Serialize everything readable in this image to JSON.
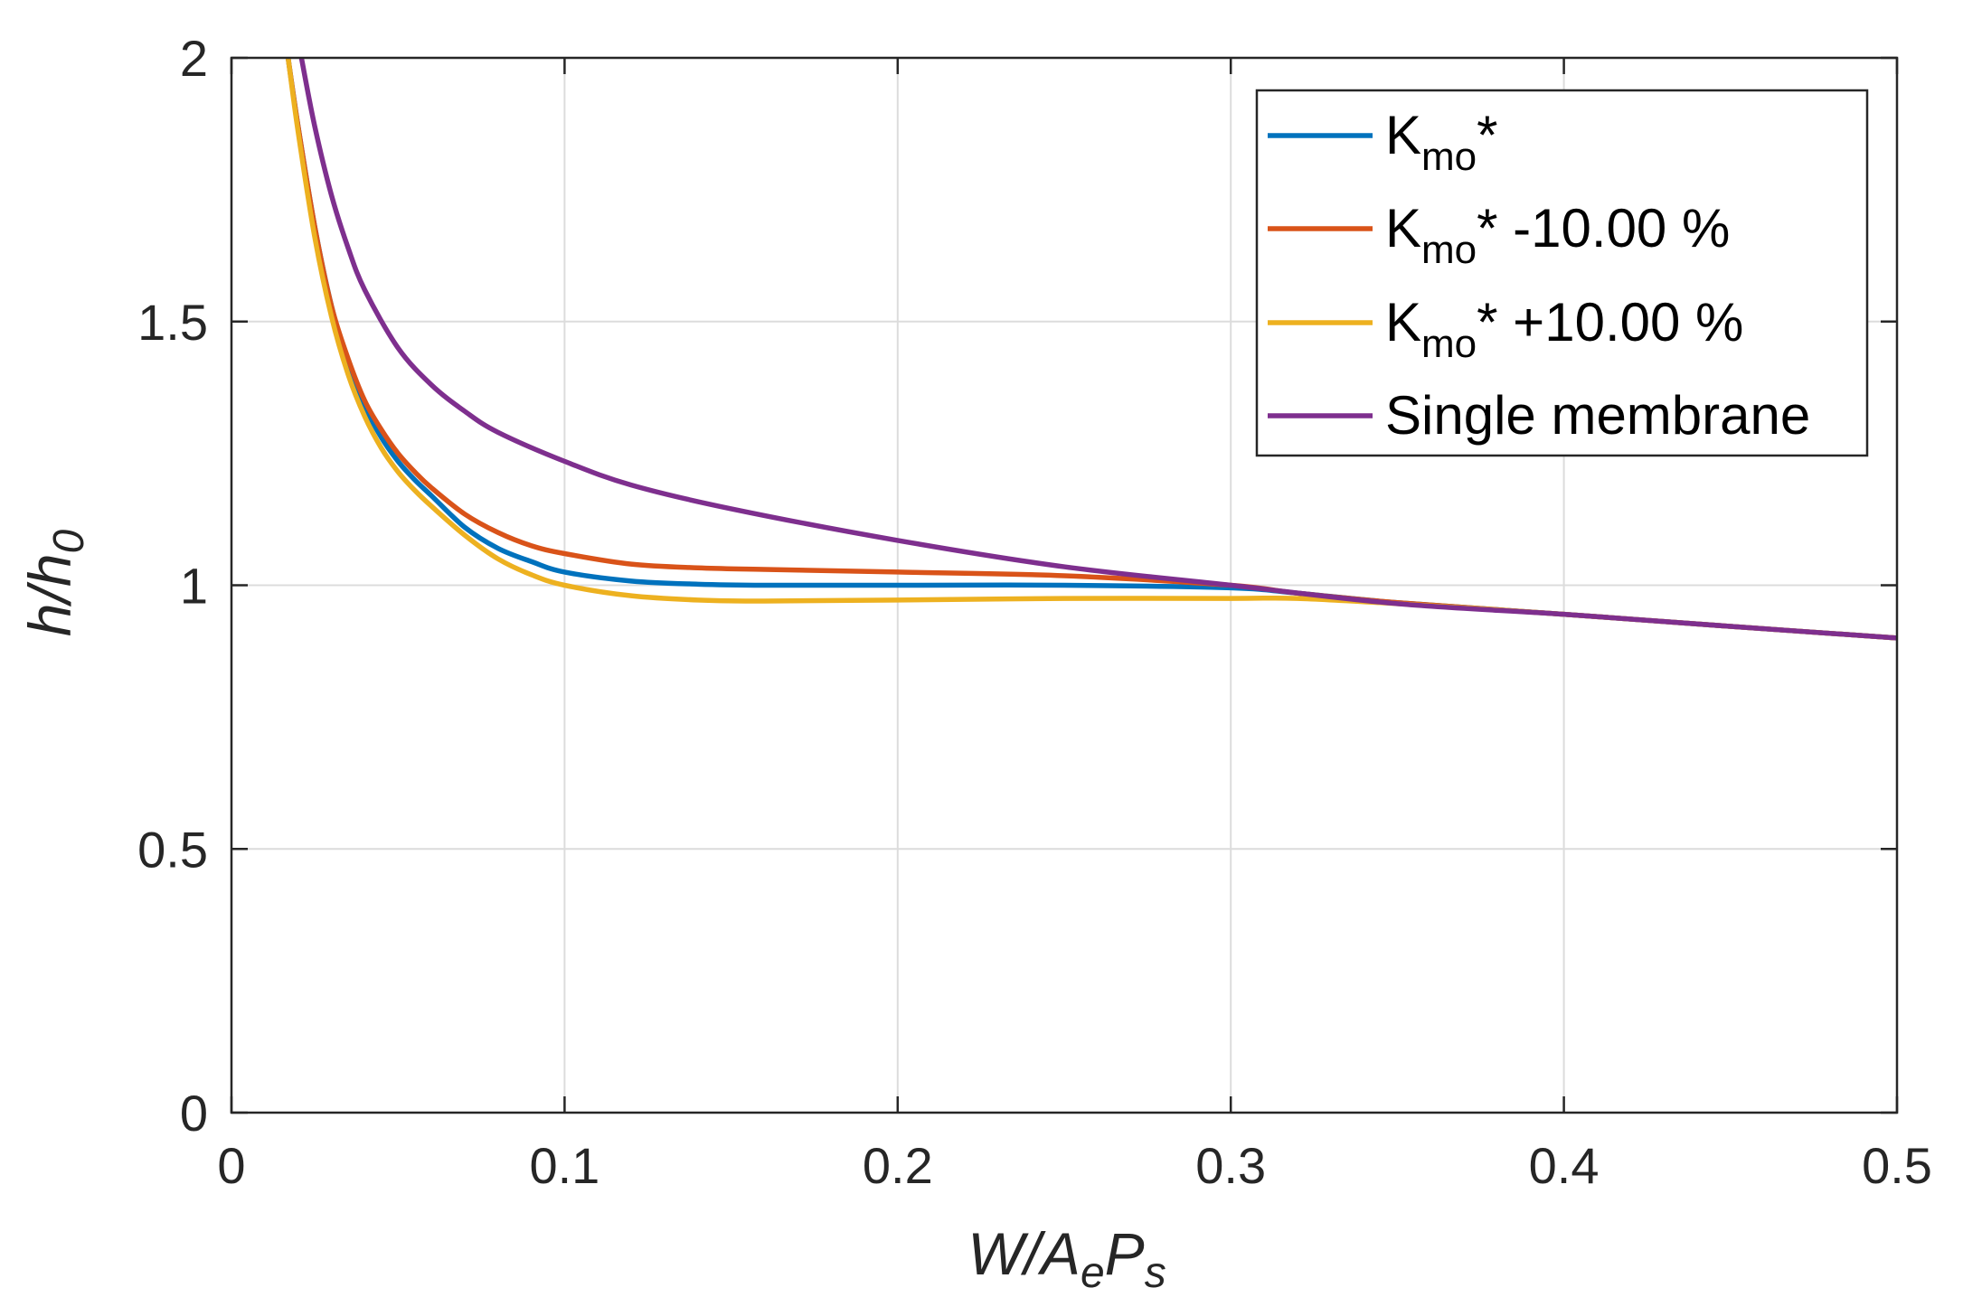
{
  "chart_data": {
    "type": "line",
    "title": "",
    "xlabel": {
      "main": "W/A",
      "sub1": "e",
      "mid": "P",
      "sub2": "s"
    },
    "ylabel": {
      "main": "h/h",
      "sub": "0"
    },
    "xlim": [
      0,
      0.5
    ],
    "ylim": [
      0,
      2
    ],
    "xticks": [
      0,
      0.1,
      0.2,
      0.3,
      0.4,
      0.5
    ],
    "xtick_labels": [
      "0",
      "0.1",
      "0.2",
      "0.3",
      "0.4",
      "0.5"
    ],
    "yticks": [
      0,
      0.5,
      1,
      1.5,
      2
    ],
    "ytick_labels": [
      "0",
      "0.5",
      "1",
      "1.5",
      "2"
    ],
    "grid": true,
    "legend_position": "top-right",
    "series": [
      {
        "name": "Kmo*",
        "label_main": "K",
        "label_sub": "mo",
        "label_rest": "*",
        "color": "#0072BD",
        "x": [
          0.017,
          0.02,
          0.025,
          0.03,
          0.035,
          0.04,
          0.045,
          0.05,
          0.055,
          0.06,
          0.07,
          0.08,
          0.09,
          0.1,
          0.12,
          0.14,
          0.16,
          0.2,
          0.25,
          0.3,
          0.32,
          0.35,
          0.4,
          0.45,
          0.5
        ],
        "y": [
          2.0,
          1.87,
          1.68,
          1.53,
          1.42,
          1.34,
          1.28,
          1.235,
          1.2,
          1.17,
          1.11,
          1.07,
          1.045,
          1.025,
          1.008,
          1.002,
          1.0,
          1.0,
          1.0,
          0.995,
          0.985,
          0.967,
          0.945,
          0.922,
          0.9
        ]
      },
      {
        "name": "Kmo* -10.00 %",
        "label_main": "K",
        "label_sub": "mo",
        "label_rest": "* -10.00 %",
        "color": "#D95319",
        "x": [
          0.017,
          0.02,
          0.025,
          0.03,
          0.035,
          0.04,
          0.045,
          0.05,
          0.055,
          0.06,
          0.07,
          0.08,
          0.09,
          0.1,
          0.12,
          0.14,
          0.16,
          0.2,
          0.25,
          0.3,
          0.32,
          0.35,
          0.4,
          0.45,
          0.5
        ],
        "y": [
          2.0,
          1.87,
          1.68,
          1.53,
          1.43,
          1.35,
          1.295,
          1.25,
          1.215,
          1.185,
          1.135,
          1.1,
          1.075,
          1.06,
          1.04,
          1.033,
          1.03,
          1.025,
          1.018,
          1.0,
          0.985,
          0.967,
          0.945,
          0.922,
          0.9
        ]
      },
      {
        "name": "Kmo* +10.00 %",
        "label_main": "K",
        "label_sub": "mo",
        "label_rest": "* +10.00 %",
        "color": "#EDB120",
        "x": [
          0.017,
          0.02,
          0.025,
          0.03,
          0.035,
          0.04,
          0.045,
          0.05,
          0.055,
          0.06,
          0.07,
          0.08,
          0.09,
          0.1,
          0.12,
          0.14,
          0.16,
          0.2,
          0.25,
          0.3,
          0.32,
          0.35,
          0.4,
          0.45,
          0.5
        ],
        "y": [
          2.0,
          1.86,
          1.66,
          1.51,
          1.4,
          1.32,
          1.26,
          1.215,
          1.18,
          1.15,
          1.095,
          1.05,
          1.02,
          1.0,
          0.98,
          0.972,
          0.97,
          0.972,
          0.975,
          0.975,
          0.975,
          0.965,
          0.945,
          0.922,
          0.9
        ]
      },
      {
        "name": "Single membrane",
        "label_main": "Single membrane",
        "label_sub": "",
        "label_rest": "",
        "color": "#7E2F8E",
        "x": [
          0.021,
          0.025,
          0.03,
          0.035,
          0.04,
          0.05,
          0.06,
          0.07,
          0.08,
          0.1,
          0.12,
          0.15,
          0.2,
          0.25,
          0.3,
          0.35,
          0.4,
          0.45,
          0.5
        ],
        "y": [
          2.0,
          1.87,
          1.74,
          1.64,
          1.56,
          1.45,
          1.38,
          1.33,
          1.29,
          1.235,
          1.19,
          1.145,
          1.085,
          1.035,
          1.0,
          0.965,
          0.945,
          0.922,
          0.9
        ]
      }
    ]
  }
}
